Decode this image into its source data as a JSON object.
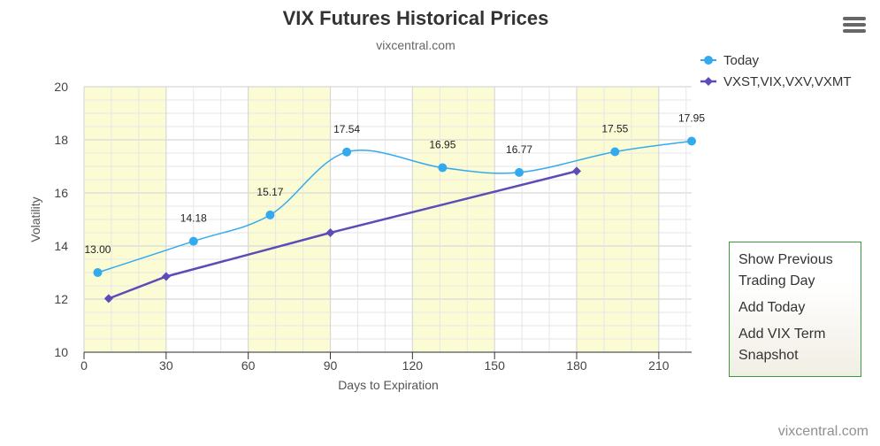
{
  "chart_data": {
    "type": "line",
    "title": "VIX Futures Historical Prices",
    "subtitle": "vixcentral.com",
    "xlabel": "Days to Expiration",
    "ylabel": "Volatility",
    "xlim": [
      0,
      222
    ],
    "ylim": [
      10,
      20
    ],
    "x_ticks": [
      0,
      30,
      60,
      90,
      120,
      150,
      180,
      210
    ],
    "y_ticks": [
      10,
      12,
      14,
      16,
      18,
      20
    ],
    "grid": true,
    "shaded_bands": [
      [
        0,
        30
      ],
      [
        60,
        90
      ],
      [
        120,
        150
      ],
      [
        180,
        210
      ]
    ],
    "legend_position": "top-right",
    "series": [
      {
        "name": "Today",
        "color": "#33aaee",
        "marker": "circle",
        "x": [
          5,
          40,
          68,
          96,
          131,
          159,
          194,
          222
        ],
        "y": [
          13.0,
          14.18,
          15.17,
          17.54,
          16.95,
          16.77,
          17.55,
          17.95
        ],
        "labels": [
          "13.00",
          "14.18",
          "15.17",
          "17.54",
          "16.95",
          "16.77",
          "17.55",
          "17.95"
        ]
      },
      {
        "name": "VXST,VIX,VXV,VXMT",
        "color": "#5b4cb8",
        "marker": "diamond",
        "x": [
          9,
          30,
          90,
          180
        ],
        "y": [
          12.02,
          12.85,
          14.5,
          16.82
        ]
      }
    ]
  },
  "menu": {
    "items": [
      "Show Previous Trading Day",
      "Add Today",
      "Add VIX Term Snapshot"
    ],
    "icon": "hamburger-menu-icon"
  },
  "credit": "vixcentral.com"
}
